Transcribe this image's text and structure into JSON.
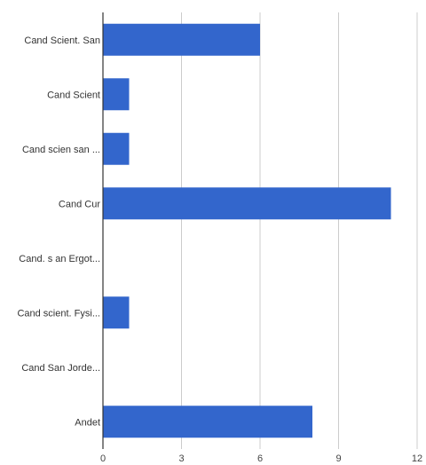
{
  "chart_data": {
    "type": "bar",
    "orientation": "horizontal",
    "categories": [
      "Cand Scient. San",
      "Cand Scient",
      "Cand scien  san ...",
      "Cand Cur",
      "Cand. s an  Ergot...",
      "Cand scient. Fysi...",
      "Cand San Jorde...",
      "Andet"
    ],
    "values": [
      6,
      1,
      1,
      11,
      0,
      1,
      0,
      8
    ],
    "xlim": [
      0,
      12
    ],
    "xticks": [
      0,
      3,
      6,
      9,
      12
    ],
    "grid": "vertical",
    "title": "",
    "xlabel": "",
    "ylabel": "",
    "legend": "none",
    "colors": {
      "bar": "#3366cc",
      "grid": "#cccccc",
      "axis": "#333333"
    }
  }
}
